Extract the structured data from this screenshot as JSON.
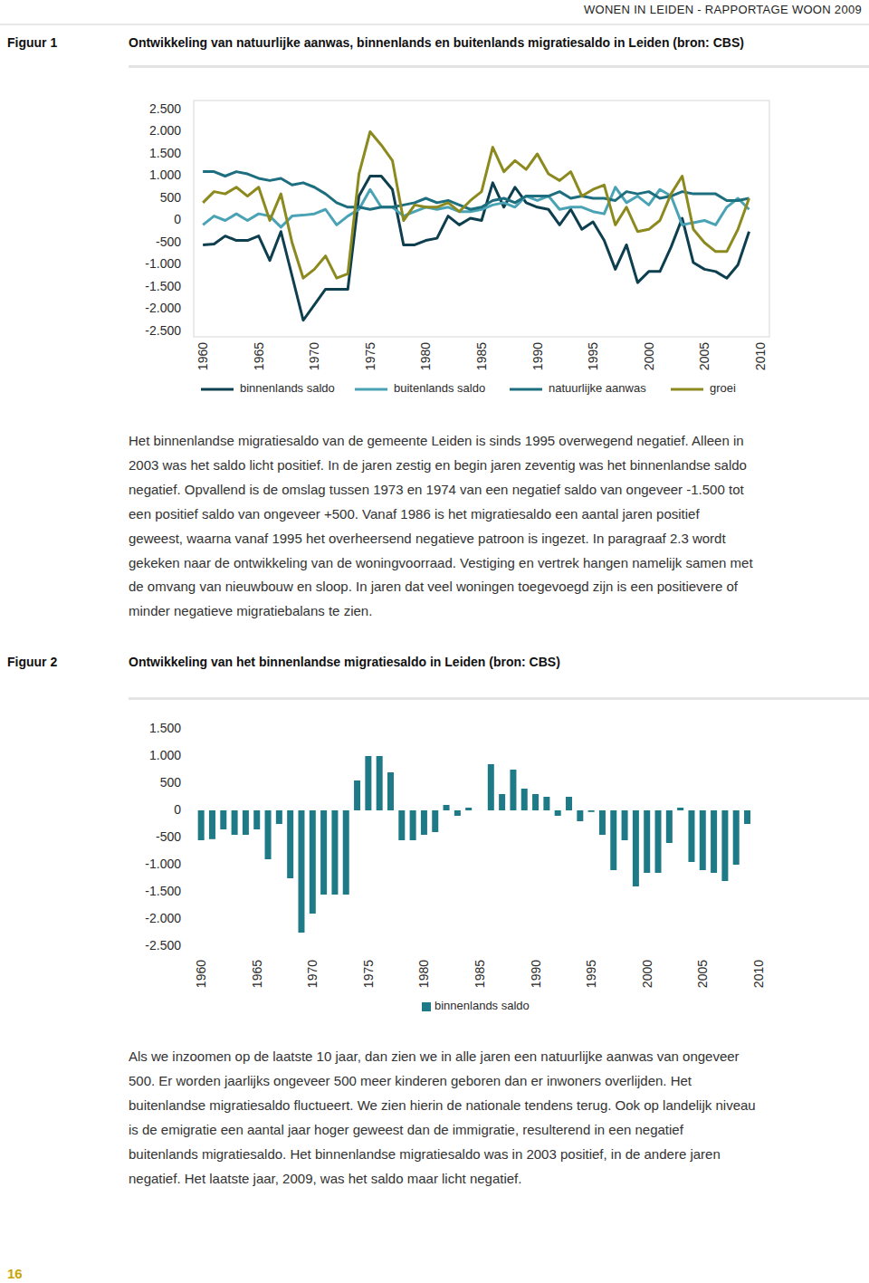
{
  "header": {
    "running_title": "WONEN IN LEIDEN - RAPPORTAGE WOON 2009"
  },
  "figure_labels": [
    "Figuur 1",
    "Figuur 2"
  ],
  "chart_data": [
    {
      "type": "line",
      "title": "Ontwikkeling van natuurlijke aanwas, binnenlands en buitenlands migratiesaldo in Leiden (bron: CBS)",
      "x": [
        1960,
        1961,
        1962,
        1963,
        1964,
        1965,
        1966,
        1967,
        1968,
        1969,
        1970,
        1971,
        1972,
        1973,
        1974,
        1975,
        1976,
        1977,
        1978,
        1979,
        1980,
        1981,
        1982,
        1983,
        1984,
        1985,
        1986,
        1987,
        1988,
        1989,
        1990,
        1991,
        1992,
        1993,
        1994,
        1995,
        1996,
        1997,
        1998,
        1999,
        2000,
        2001,
        2002,
        2003,
        2004,
        2005,
        2006,
        2007,
        2008,
        2009
      ],
      "series": [
        {
          "name": "binnenlands saldo",
          "color": "#0e3f4f",
          "values": [
            -550,
            -530,
            -350,
            -450,
            -450,
            -350,
            -900,
            -250,
            -1250,
            -2250,
            -1900,
            -1550,
            -1550,
            -1550,
            550,
            1000,
            1000,
            700,
            -550,
            -550,
            -450,
            -400,
            100,
            -100,
            50,
            0,
            850,
            300,
            750,
            400,
            300,
            250,
            -100,
            250,
            -200,
            -30,
            -450,
            -1100,
            -550,
            -1400,
            -1150,
            -1150,
            -600,
            50,
            -950,
            -1100,
            -1150,
            -1300,
            -1000,
            -250
          ]
        },
        {
          "name": "buitenlands saldo",
          "color": "#4aa3b5",
          "values": [
            -100,
            100,
            0,
            150,
            0,
            150,
            100,
            -150,
            100,
            120,
            150,
            250,
            -100,
            100,
            250,
            700,
            300,
            300,
            100,
            200,
            300,
            250,
            300,
            200,
            200,
            250,
            350,
            400,
            300,
            550,
            450,
            550,
            250,
            300,
            300,
            200,
            150,
            750,
            400,
            550,
            350,
            700,
            550,
            -100,
            -50,
            0,
            -100,
            300,
            500,
            250
          ]
        },
        {
          "name": "natuurlijke aanwas",
          "color": "#1d6e7e",
          "values": [
            1100,
            1100,
            1000,
            1100,
            1050,
            950,
            900,
            950,
            800,
            850,
            750,
            600,
            400,
            300,
            300,
            250,
            300,
            300,
            350,
            400,
            500,
            400,
            450,
            350,
            250,
            300,
            450,
            500,
            400,
            550,
            550,
            550,
            650,
            500,
            550,
            500,
            500,
            450,
            650,
            600,
            650,
            500,
            550,
            650,
            600,
            600,
            600,
            450,
            450,
            500
          ]
        },
        {
          "name": "groei",
          "color": "#8c8a1e",
          "values": [
            400,
            650,
            600,
            750,
            550,
            750,
            0,
            600,
            -500,
            -1300,
            -1100,
            -800,
            -1300,
            -1200,
            1050,
            2000,
            1700,
            1350,
            0,
            350,
            300,
            300,
            400,
            200,
            450,
            650,
            1650,
            1100,
            1350,
            1150,
            1500,
            1050,
            900,
            1100,
            550,
            700,
            800,
            -100,
            300,
            -250,
            -200,
            0,
            600,
            1000,
            -200,
            -500,
            -700,
            -700,
            -200,
            500
          ]
        }
      ],
      "xlim": [
        1959.5,
        2010.5
      ],
      "xticks": [
        1960,
        1965,
        1970,
        1975,
        1980,
        1985,
        1990,
        1995,
        2000,
        2005,
        2010
      ],
      "ylim": [
        -2500,
        2500
      ],
      "yticks": [
        {
          "value": 2500,
          "label": "2.500"
        },
        {
          "value": 2000,
          "label": "2.000"
        },
        {
          "value": 1500,
          "label": "1.500"
        },
        {
          "value": 1000,
          "label": "1.000"
        },
        500,
        0,
        -500,
        {
          "value": -1000,
          "label": "-1.000"
        },
        {
          "value": -1500,
          "label": "-1.500"
        },
        {
          "value": -2000,
          "label": "-2.000"
        },
        {
          "value": -2500,
          "label": "-2.500"
        }
      ],
      "grid": false,
      "legend": "bottom"
    },
    {
      "type": "bar",
      "title": "Ontwikkeling van het binnenlandse migratiesaldo in Leiden (bron: CBS)",
      "x": [
        1960,
        1961,
        1962,
        1963,
        1964,
        1965,
        1966,
        1967,
        1968,
        1969,
        1970,
        1971,
        1972,
        1973,
        1974,
        1975,
        1976,
        1977,
        1978,
        1979,
        1980,
        1981,
        1982,
        1983,
        1984,
        1985,
        1986,
        1987,
        1988,
        1989,
        1990,
        1991,
        1992,
        1993,
        1994,
        1995,
        1996,
        1997,
        1998,
        1999,
        2000,
        2001,
        2002,
        2003,
        2004,
        2005,
        2006,
        2007,
        2008,
        2009
      ],
      "series": [
        {
          "name": "binnenlands saldo",
          "color": "#1f7a87",
          "values": [
            -550,
            -530,
            -350,
            -450,
            -450,
            -350,
            -900,
            -250,
            -1250,
            -2250,
            -1900,
            -1550,
            -1550,
            -1550,
            550,
            1000,
            1000,
            700,
            -550,
            -550,
            -450,
            -400,
            100,
            -100,
            50,
            0,
            850,
            300,
            750,
            400,
            300,
            250,
            -100,
            250,
            -200,
            -30,
            -450,
            -1100,
            -550,
            -1400,
            -1150,
            -1150,
            -600,
            50,
            -950,
            -1100,
            -1150,
            -1300,
            -1000,
            -250
          ]
        }
      ],
      "xlim": [
        1959.5,
        2010.5
      ],
      "xticks": [
        1960,
        1965,
        1970,
        1975,
        1980,
        1985,
        1990,
        1995,
        2000,
        2005,
        2010
      ],
      "ylim": [
        -2500,
        1500
      ],
      "yticks": [
        {
          "value": 1500,
          "label": "1.500"
        },
        {
          "value": 1000,
          "label": "1.000"
        },
        500,
        0,
        -500,
        {
          "value": -1000,
          "label": "-1.000"
        },
        {
          "value": -1500,
          "label": "-1.500"
        },
        {
          "value": -2000,
          "label": "-2.000"
        },
        {
          "value": -2500,
          "label": "-2.500"
        }
      ],
      "grid": false,
      "legend": "bottom"
    }
  ],
  "paragraphs": [
    [
      "Het binnenlandse migratiesaldo van de gemeente Leiden is sinds 1995 overwegend negatief. Alleen in",
      "2003 was het saldo licht positief. In de jaren zestig en begin jaren zeventig was het binnenlandse saldo",
      "negatief. Opvallend is de omslag tussen 1973 en 1974 van een negatief saldo van ongeveer -1.500 tot",
      "een positief saldo van ongeveer +500. Vanaf 1986 is het migratiesaldo een aantal jaren positief",
      "geweest, waarna vanaf 1995 het overheersend negatieve patroon is ingezet. In paragraaf 2.3 wordt",
      "gekeken naar de ontwikkeling van de woningvoorraad. Vestiging en vertrek hangen namelijk samen met",
      "de omvang van nieuwbouw en sloop. In jaren dat veel woningen toegevoegd zijn is een positievere of",
      "minder negatieve migratiebalans te zien."
    ],
    [
      "Als we inzoomen op de laatste 10 jaar, dan zien we in alle jaren een natuurlijke aanwas van ongeveer",
      "500. Er worden jaarlijks ongeveer 500 meer kinderen geboren dan er inwoners overlijden. Het",
      "buitenlandse migratiesaldo fluctueert. We zien hierin de nationale tendens terug. Ook op landelijk niveau",
      "is de emigratie een aantal jaar hoger geweest dan de immigratie, resulterend in een negatief",
      "buitenlands migratiesaldo. Het binnenlandse migratiesaldo was in 2003 positief, in de andere jaren",
      "negatief. Het laatste jaar, 2009, was het saldo maar licht negatief."
    ]
  ],
  "page_number": 16
}
